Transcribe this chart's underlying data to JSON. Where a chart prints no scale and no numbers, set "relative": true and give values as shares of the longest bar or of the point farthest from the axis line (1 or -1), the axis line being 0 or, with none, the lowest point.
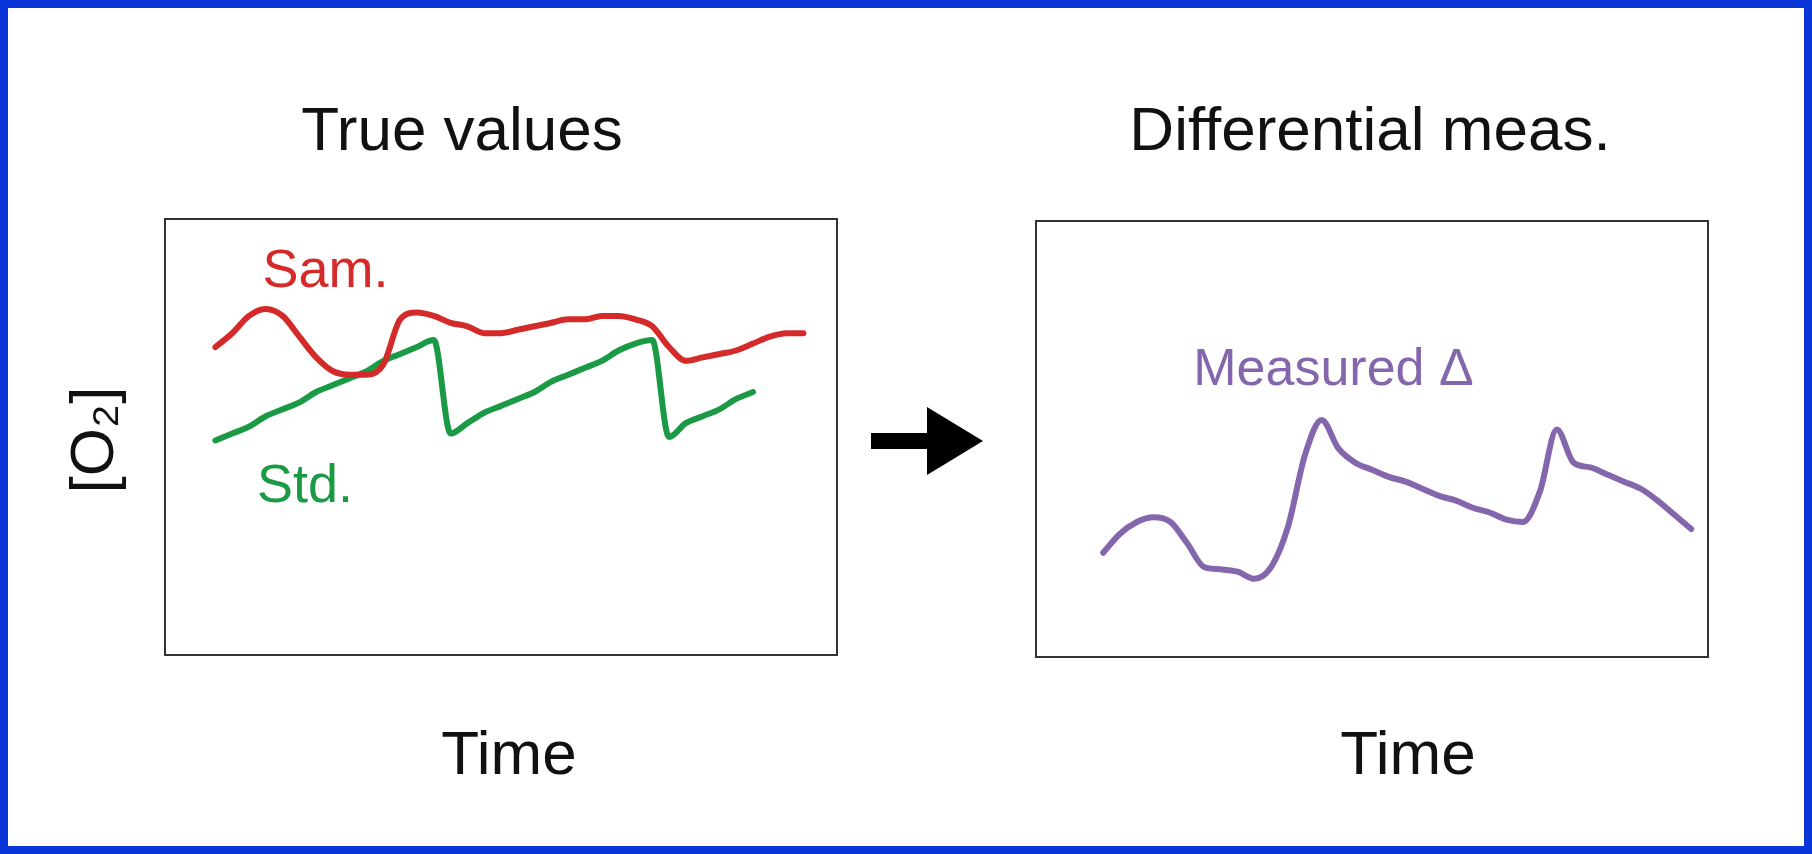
{
  "chart_data": [
    {
      "type": "line",
      "title": "True values",
      "xlabel": "Time",
      "ylabel": "[O₂]",
      "relative": true,
      "categories": [
        null,
        null,
        null,
        null,
        null,
        null,
        null,
        null,
        null,
        null,
        null,
        null,
        null,
        null,
        null,
        null,
        null,
        null,
        null,
        null,
        null,
        null,
        null,
        null,
        null,
        null,
        null,
        null,
        null,
        null,
        null,
        null,
        null,
        null,
        null,
        null,
        null,
        null,
        null,
        null,
        null
      ],
      "series": [
        {
          "name": "Sam.",
          "color": "#d42a2a",
          "values": [
            null,
            null,
            null,
            0.89,
            0.93,
            0.98,
            1.0,
            0.98,
            0.92,
            0.86,
            0.82,
            0.81,
            0.81,
            0.84,
            0.97,
            0.99,
            0.98,
            0.96,
            0.95,
            0.93,
            0.93,
            0.94,
            0.95,
            0.96,
            0.97,
            0.97,
            0.98,
            0.98,
            0.97,
            0.95,
            0.89,
            0.85,
            0.86,
            0.87,
            0.88,
            0.9,
            0.92,
            0.93,
            0.93,
            null,
            null
          ]
        },
        {
          "name": "Std.",
          "color": "#1a9a45",
          "values": [
            null,
            null,
            null,
            0.62,
            0.64,
            0.66,
            0.69,
            0.71,
            0.73,
            0.76,
            0.78,
            0.8,
            0.82,
            0.85,
            0.87,
            0.89,
            0.91,
            0.64,
            0.67,
            0.7,
            0.72,
            0.74,
            0.76,
            0.79,
            0.81,
            0.83,
            0.85,
            0.88,
            0.9,
            0.91,
            0.63,
            0.67,
            0.69,
            0.71,
            0.74,
            0.76,
            null,
            null,
            null,
            null,
            null
          ]
        }
      ]
    },
    {
      "type": "line",
      "title": "Differential meas.",
      "xlabel": "Time",
      "relative": true,
      "categories": [
        null,
        null,
        null,
        null,
        null,
        null,
        null,
        null,
        null,
        null,
        null,
        null,
        null,
        null,
        null,
        null,
        null,
        null,
        null,
        null,
        null,
        null,
        null,
        null,
        null,
        null,
        null,
        null,
        null,
        null,
        null,
        null,
        null,
        null,
        null,
        null,
        null,
        null,
        null,
        null,
        null
      ],
      "series": [
        {
          "name": "Measured Δ",
          "color": "#8466ac",
          "values": [
            null,
            null,
            null,
            null,
            0.44,
            0.52,
            0.57,
            0.59,
            0.57,
            0.48,
            0.38,
            0.37,
            0.36,
            0.33,
            0.38,
            0.55,
            0.85,
            1.0,
            0.88,
            0.82,
            0.79,
            0.76,
            0.74,
            0.71,
            0.68,
            0.66,
            0.63,
            0.61,
            0.58,
            0.57,
            0.7,
            0.96,
            0.82,
            0.8,
            0.77,
            0.74,
            0.71,
            0.66,
            0.6,
            0.54,
            null
          ]
        }
      ]
    }
  ]
}
